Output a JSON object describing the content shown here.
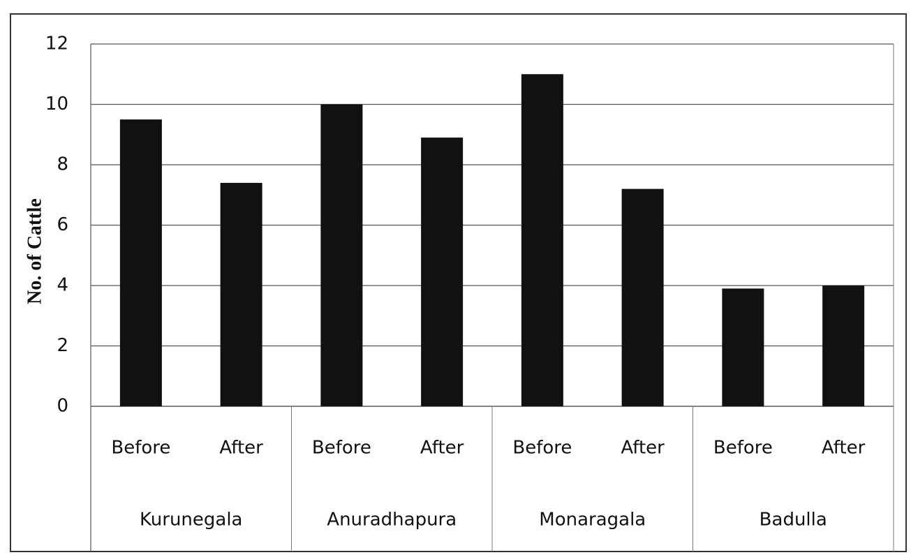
{
  "chart_data": {
    "type": "bar",
    "y_label": "No. of Cattle",
    "categories": [
      "Before",
      "After",
      "Before",
      "After",
      "Before",
      "After",
      "Before",
      "After"
    ],
    "groups": [
      "Kurunegala",
      "Anuradhapura",
      "Monaragala",
      "Badulla"
    ],
    "values": [
      9.5,
      7.4,
      10,
      8.9,
      11,
      7.2,
      3.9,
      4.0
    ],
    "color": "#111111",
    "ylim": [
      0,
      12
    ],
    "yticks": [
      0,
      2,
      4,
      6,
      8,
      10,
      12
    ],
    "grid": true
  }
}
